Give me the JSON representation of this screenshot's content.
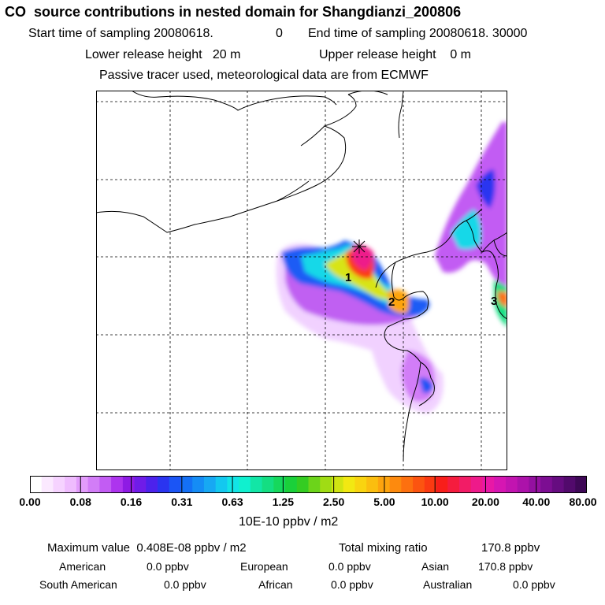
{
  "header": {
    "title": "CO  source contributions in nested domain for Shangdianzi_200806",
    "start_label": "Start time of sampling 20080618.",
    "start_value": "0",
    "end_label": "End time of sampling 20080618. 30000",
    "lower_release": "Lower release height   20 m",
    "upper_release": "Upper release height    0 m",
    "note": "Passive tracer used, meteorological data are from ECMWF"
  },
  "map": {
    "site_marker_icon": "asterisk-star",
    "region_labels": [
      "1",
      "2",
      "3"
    ]
  },
  "colorbar": {
    "tick_labels": [
      "0.00",
      "0.08",
      "0.16",
      "0.31",
      "0.63",
      "1.25",
      "2.50",
      "5.00",
      "10.00",
      "20.00",
      "40.00",
      "80.00"
    ],
    "unit": "10E-10 ppbv / m2",
    "colors": [
      "#ffffff",
      "#fbe9ff",
      "#f6d3ff",
      "#efbcfe",
      "#e29cfb",
      "#d27df7",
      "#c25cf3",
      "#ad34ee",
      "#8e1be4",
      "#6f1ce8",
      "#4c22ec",
      "#2a34f0",
      "#1b55f5",
      "#1470f5",
      "#158cf5",
      "#17a8f3",
      "#13c8ef",
      "#12e4e6",
      "#10f0cf",
      "#12e6a6",
      "#14de82",
      "#16d85c",
      "#1ad03a",
      "#34cc22",
      "#6cd41a",
      "#a0dc14",
      "#d0e412",
      "#f2e812",
      "#f9d410",
      "#fbbe0f",
      "#fda40e",
      "#fd8a0e",
      "#fd700f",
      "#fc5410",
      "#fb3a12",
      "#f81e1a",
      "#f51c3e",
      "#f21c66",
      "#ee1a8a",
      "#e818a6",
      "#d616b2",
      "#c214b0",
      "#ac12aa",
      "#9410a0",
      "#7c0e92",
      "#660c80",
      "#520a6c",
      "#3e0856"
    ]
  },
  "stats": {
    "max_label": "Maximum value  0.408E-08 ppbv / m2",
    "total_label": "Total mixing ratio",
    "total_value": "170.8 ppbv",
    "contributions": [
      {
        "name": "American",
        "value": "0.0 ppbv"
      },
      {
        "name": "European",
        "value": "0.0 ppbv"
      },
      {
        "name": "Asian",
        "value": "170.8 ppbv"
      },
      {
        "name": "South American",
        "value": "0.0 ppbv"
      },
      {
        "name": "African",
        "value": "0.0 ppbv"
      },
      {
        "name": "Australian",
        "value": "0.0 ppbv"
      }
    ]
  }
}
